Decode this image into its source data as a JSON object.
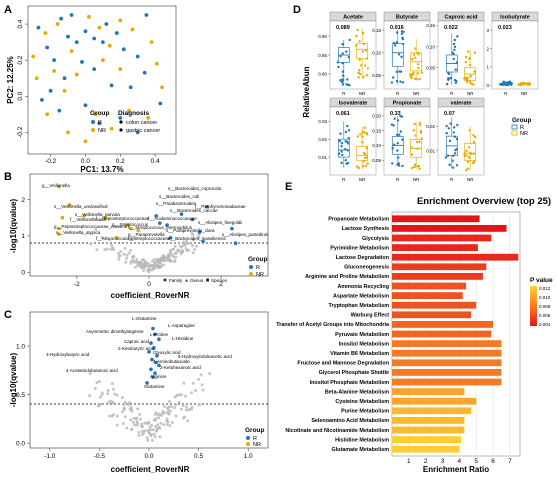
{
  "colors": {
    "R": "#1f78b4",
    "NR": "#e6ab02",
    "grey": "#b8b8b8",
    "accent": "#6a7fd1"
  },
  "chart_data": [
    {
      "panel": "A",
      "type": "scatter",
      "xlabel": "PC1: 13.7%",
      "ylabel": "PC2: 12.25%",
      "xticks": [
        "-0.2",
        "0.0",
        "0.2",
        "0.4"
      ],
      "yticks": [
        "-0.2",
        "0.0",
        "0.2",
        "0.4"
      ],
      "xlim": [
        -0.33,
        0.52
      ],
      "ylim": [
        -0.32,
        0.5
      ],
      "legend": {
        "group_title": "Group",
        "groups": [
          "R",
          "NR"
        ],
        "diagnosis_title": "Diagnosis",
        "diagnoses": [
          "colon cancer",
          "gastric cancer"
        ]
      },
      "series": [
        {
          "name": "R",
          "points": [
            [
              -0.27,
              0.38
            ],
            [
              -0.22,
              0.27
            ],
            [
              -0.18,
              0.2
            ],
            [
              -0.14,
              0.43
            ],
            [
              -0.1,
              0.33
            ],
            [
              -0.05,
              0.3
            ],
            [
              0.0,
              0.36
            ],
            [
              0.05,
              0.32
            ],
            [
              0.1,
              0.3
            ],
            [
              0.12,
              0.4
            ],
            [
              0.18,
              0.35
            ],
            [
              0.22,
              0.26
            ],
            [
              0.3,
              0.22
            ],
            [
              0.34,
              0.13
            ],
            [
              0.26,
              0.05
            ],
            [
              0.15,
              0.06
            ],
            [
              0.05,
              0.15
            ],
            [
              -0.02,
              0.19
            ],
            [
              -0.12,
              0.1
            ],
            [
              -0.2,
              0.03
            ],
            [
              -0.25,
              -0.02
            ],
            [
              -0.15,
              -0.08
            ],
            [
              0.0,
              -0.05
            ],
            [
              0.08,
              -0.15
            ],
            [
              0.2,
              -0.12
            ],
            [
              0.3,
              -0.2
            ],
            [
              0.43,
              -0.04
            ],
            [
              -0.08,
              0.45
            ],
            [
              0.35,
              0.45
            ]
          ]
        },
        {
          "name": "NR",
          "points": [
            [
              -0.23,
              0.35
            ],
            [
              -0.16,
              0.4
            ],
            [
              -0.08,
              0.25
            ],
            [
              0.02,
              0.44
            ],
            [
              0.08,
              0.38
            ],
            [
              0.14,
              0.28
            ],
            [
              0.2,
              0.42
            ],
            [
              0.27,
              0.37
            ],
            [
              0.38,
              0.3
            ],
            [
              0.41,
              0.18
            ],
            [
              0.2,
              0.15
            ],
            [
              0.1,
              0.2
            ],
            [
              -0.05,
              0.12
            ],
            [
              -0.18,
              0.14
            ],
            [
              -0.28,
              0.1
            ],
            [
              -0.22,
              -0.1
            ],
            [
              -0.1,
              -0.2
            ],
            [
              0.0,
              -0.25
            ],
            [
              0.06,
              -0.1
            ],
            [
              0.15,
              -0.18
            ],
            [
              0.25,
              -0.08
            ],
            [
              0.36,
              -0.12
            ],
            [
              -0.3,
              0.22
            ],
            [
              0.44,
              0.05
            ],
            [
              -0.12,
              0.03
            ]
          ]
        }
      ]
    },
    {
      "panel": "B",
      "type": "scatter",
      "xlabel": "coefficient_RoverNR",
      "ylabel": "-log10(qvalue)",
      "xticks": [
        "-2",
        "0",
        "2"
      ],
      "yticks": [
        "0",
        "1",
        "2"
      ],
      "xlim": [
        -3.3,
        3.3
      ],
      "ylim": [
        -0.1,
        2.7
      ],
      "legend": {
        "title": "Group",
        "groups": [
          "R",
          "NR"
        ],
        "shape_labels": [
          "Family",
          "Genus",
          "Species"
        ]
      },
      "labels": [
        "g__Veillonella",
        "s__Veillonella_unclassified",
        "s__Veillonella_parvula",
        "f__Veillonellaceae",
        "f__Peptostreptococcaceae",
        "g__Peptostreptococcaceae_noname",
        "s__Veillonella_atypica",
        "g__Streptococcus",
        "s__Streptococcus_thermophilus",
        "f__Micrococcaceae",
        "f__Streptococcaceae",
        "f__Acidaminococcaceae",
        "s__Bacteroides_coprocola",
        "s__Parabacteroides",
        "f__Porphyromonadaceae",
        "s__Alistipes_finegoldii",
        "s__Paraprevotella_clara",
        "g__Paraprevotella",
        "s__Bacteroides_massiliensis",
        "s__Alistipes_putredinis",
        "s__Bacteroides_coli",
        "s__Bacteroides_caccae"
      ]
    },
    {
      "panel": "C",
      "type": "scatter",
      "xlabel": "coefficient_RoverNR",
      "ylabel": "-log10(qvalue)",
      "xticks": [
        "-1.0",
        "-0.5",
        "0.0",
        "0.5",
        "1.0"
      ],
      "yticks": [
        "0.0",
        "0.5",
        "1.0"
      ],
      "xlim": [
        -1.2,
        1.2
      ],
      "ylim": [
        -0.05,
        1.35
      ],
      "legend": {
        "title": "Group",
        "groups": [
          "R",
          "NR"
        ]
      },
      "labels": [
        "L-Glutamine",
        "L-Asparagine",
        "Asymmetric dimethylarginine",
        "L-Proline",
        "L-Histidine",
        "Caproic acid",
        "2-Ketobutyric acid",
        "3-Hydroxybutyric acid",
        "Glyoxylic acid",
        "5-Hydroxyindoleacetic acid",
        "4-Aminobutanoate",
        "4-Acetamidobutanoic acid",
        "2-Ketohexanoic acid",
        "Arginine",
        "Glutamine"
      ]
    },
    {
      "panel": "D",
      "type": "box",
      "ylabel": "RelativeAbun",
      "categories": [
        "R",
        "NR"
      ],
      "legend": {
        "title": "Group",
        "groups": [
          "R",
          "NR"
        ]
      },
      "facets": [
        {
          "title": "Acetate",
          "p": "0.089",
          "yticks": [
            "0.80",
            "0.85",
            "0.90"
          ],
          "ylim": [
            0.76,
            0.94
          ],
          "R": [
            0.77,
            0.83,
            0.85,
            0.87,
            0.89
          ],
          "NR": [
            0.79,
            0.84,
            0.865,
            0.88,
            0.92
          ]
        },
        {
          "title": "Butyrate",
          "p": "0.016",
          "yticks": [
            "0.05",
            "0.10",
            "0.15"
          ],
          "ylim": [
            0.02,
            0.17
          ],
          "R": [
            0.03,
            0.07,
            0.1,
            0.12,
            0.15
          ],
          "NR": [
            0.04,
            0.06,
            0.08,
            0.1,
            0.13
          ]
        },
        {
          "title": "Caproic acid",
          "p": "0.022",
          "yticks": [
            "0.05",
            "0.10",
            "0.15"
          ],
          "ylim": [
            0.0,
            0.16
          ],
          "R": [
            0.01,
            0.04,
            0.06,
            0.08,
            0.13
          ],
          "NR": [
            0.01,
            0.02,
            0.035,
            0.05,
            0.09
          ]
        },
        {
          "title": "Isobutyrate",
          "p": "0.023",
          "yticks": [
            "0",
            "1",
            "2",
            "3"
          ],
          "ylim": [
            -0.2,
            3.5
          ],
          "R": [
            0.01,
            0.05,
            0.08,
            0.12,
            0.2
          ],
          "NR": [
            0.01,
            0.03,
            0.05,
            0.08,
            0.15
          ]
        },
        {
          "title": "Isovalerate",
          "p": "0.061",
          "yticks": [
            "0.01",
            "0.02",
            "0.03"
          ],
          "ylim": [
            0.0,
            0.038
          ],
          "R": [
            0.004,
            0.01,
            0.014,
            0.02,
            0.03
          ],
          "NR": [
            0.003,
            0.008,
            0.011,
            0.016,
            0.027
          ]
        },
        {
          "title": "Propionate",
          "p": "0.33",
          "yticks": [
            "0.05",
            "0.10",
            "0.15",
            "0.20"
          ],
          "ylim": [
            0.0,
            0.23
          ],
          "R": [
            0.03,
            0.07,
            0.1,
            0.13,
            0.2
          ],
          "NR": [
            0.02,
            0.06,
            0.09,
            0.12,
            0.18
          ]
        },
        {
          "title": "valerate",
          "p": "0.07",
          "yticks": [
            "0.01",
            "0.02"
          ],
          "ylim": [
            0.0,
            0.028
          ],
          "R": [
            0.003,
            0.008,
            0.012,
            0.016,
            0.024
          ],
          "NR": [
            0.002,
            0.006,
            0.009,
            0.013,
            0.02
          ]
        }
      ]
    },
    {
      "panel": "E",
      "type": "bar",
      "title": "Enrichment Overview (top 25)",
      "xlabel": "Enrichment Ratio",
      "xticks": [
        "1",
        "2",
        "3",
        "4",
        "5",
        "6",
        "7"
      ],
      "xlim": [
        0,
        7.6
      ],
      "legend": {
        "title": "P value",
        "ticks": [
          "0.012",
          "0.010",
          "0.008",
          "0.006",
          "0.004"
        ]
      },
      "categories": [
        "Propanoate Metabolism",
        "Lactose Synthesis",
        "Glycolysis",
        "Pyrimidine Metabolism",
        "Lactose Degradation",
        "Gluconeogenesis",
        "Arginine and Proline Metabolism",
        "Ammonia Recycling",
        "Aspartate Metabolism",
        "Tryptophan Metabolism",
        "Warburg Effect",
        "Transfer of Acetyl Groups into Mitochondria",
        "Pyruvate Metabolism",
        "Inositol Metabolism",
        "Vitamin B6 Metabolism",
        "Fructose and Mannose Degradation",
        "Glycerol Phosphate Shuttle",
        "Inositol Phosphate Metabolism",
        "Beta-Alanine Metabolism",
        "Cysteine Metabolism",
        "Purine Metabolism",
        "Selenoamino Acid Metabolism",
        "Nicotinate and Nicotinamide Metabolism",
        "Histidine Metabolism",
        "Glutamate Metabolism"
      ],
      "values": [
        5.2,
        6.8,
        5.9,
        5.1,
        7.5,
        5.6,
        5.4,
        4.4,
        4.2,
        5.0,
        4.7,
        6.0,
        5.9,
        6.5,
        6.5,
        6.5,
        6.5,
        6.5,
        4.3,
        5.0,
        4.7,
        4.3,
        4.3,
        4.1,
        4.0
      ],
      "pvalues": [
        0.003,
        0.003,
        0.004,
        0.004,
        0.004,
        0.005,
        0.005,
        0.006,
        0.006,
        0.006,
        0.006,
        0.007,
        0.007,
        0.008,
        0.008,
        0.008,
        0.008,
        0.008,
        0.01,
        0.01,
        0.011,
        0.011,
        0.011,
        0.012,
        0.012
      ]
    }
  ]
}
